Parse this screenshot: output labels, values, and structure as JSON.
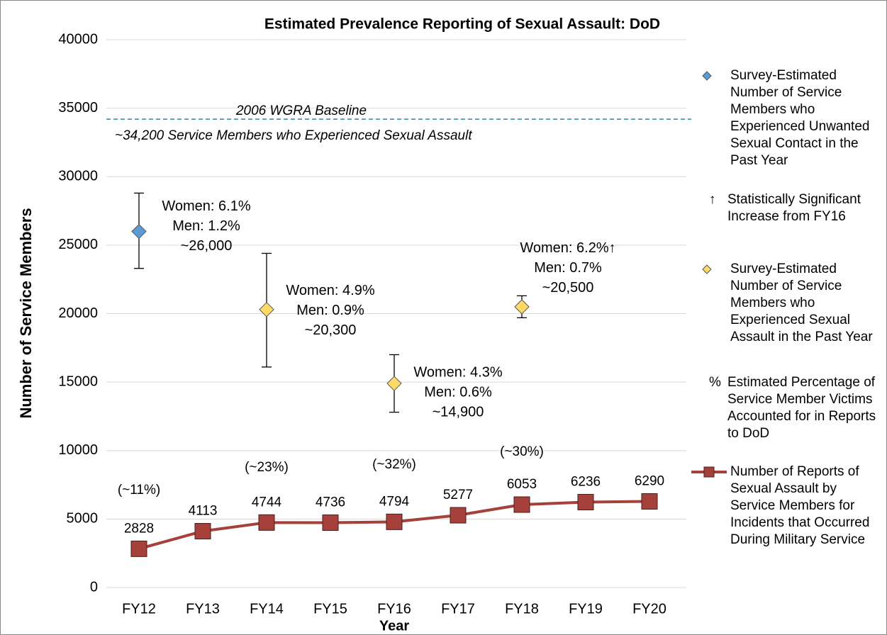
{
  "chart_data": {
    "type": "line",
    "title": "Estimated Prevalence Reporting of Sexual Assault: DoD",
    "x_label": "Year",
    "y_label": "Number of Service Members",
    "categories": [
      "FY12",
      "FY13",
      "FY14",
      "FY15",
      "FY16",
      "FY17",
      "FY18",
      "FY19",
      "FY20"
    ],
    "ylim": [
      0,
      40000
    ],
    "yticks": [
      0,
      5000,
      10000,
      15000,
      20000,
      25000,
      30000,
      35000,
      40000
    ],
    "grid": true,
    "baseline": {
      "value": 34200,
      "label": "2006 WGRA Baseline",
      "note": "~34,200 Service Members who Experienced Sexual Assault",
      "color": "#31859c"
    },
    "series": [
      {
        "name": "Survey-Estimated Number of Service Members who Experienced Unwanted Sexual Contact in the Past Year",
        "kind": "scatter",
        "marker": "diamond",
        "color": "#5b9bd5",
        "values": [
          26000,
          null,
          null,
          null,
          null,
          null,
          null,
          null,
          null
        ],
        "value_labels": [
          "~26,000",
          null,
          null,
          null,
          null,
          null,
          null,
          null,
          null
        ],
        "lower": [
          23300,
          null,
          null,
          null,
          null,
          null,
          null,
          null,
          null
        ],
        "upper": [
          28800,
          null,
          null,
          null,
          null,
          null,
          null,
          null,
          null
        ],
        "notes": [
          [
            "Women: 6.1%",
            "Men: 1.2%"
          ],
          null,
          null,
          null,
          null,
          null,
          null,
          null,
          null
        ]
      },
      {
        "name": "Survey-Estimated Number of Service Members who Experienced Sexual Assault in the Past Year",
        "kind": "scatter",
        "marker": "diamond",
        "color": "#ffd966",
        "values": [
          null,
          null,
          20300,
          null,
          14900,
          null,
          20500,
          null,
          null
        ],
        "value_labels": [
          null,
          null,
          "~20,300",
          null,
          "~14,900",
          null,
          "~20,500",
          null,
          null
        ],
        "lower": [
          null,
          null,
          16100,
          null,
          12800,
          null,
          19700,
          null,
          null
        ],
        "upper": [
          null,
          null,
          24400,
          null,
          17000,
          null,
          21300,
          null,
          null
        ],
        "notes": [
          null,
          null,
          [
            "Women: 4.9%",
            "Men: 0.9%"
          ],
          null,
          [
            "Women: 4.3%",
            "Men: 0.6%"
          ],
          null,
          [
            "Women: 6.2%↑",
            "Men: 0.7%"
          ],
          null,
          null
        ]
      },
      {
        "name": "Number of Reports of Sexual Assault by Service Members for Incidents that Occurred During Military Service",
        "kind": "line",
        "marker": "square",
        "color": "#a5403b",
        "values": [
          2828,
          4113,
          4744,
          4736,
          4794,
          5277,
          6053,
          6236,
          6290
        ]
      }
    ],
    "percent_labels": [
      "(~11%)",
      null,
      "(~23%)",
      null,
      "(~32%)",
      null,
      "(~30%)",
      null,
      null
    ],
    "legend_notes": [
      {
        "symbol": "↑",
        "text": "Statistically Significant Increase from FY16"
      },
      {
        "symbol": "%",
        "text": "Estimated Percentage of Service Member Victims Accounted for in Reports to DoD"
      }
    ]
  }
}
